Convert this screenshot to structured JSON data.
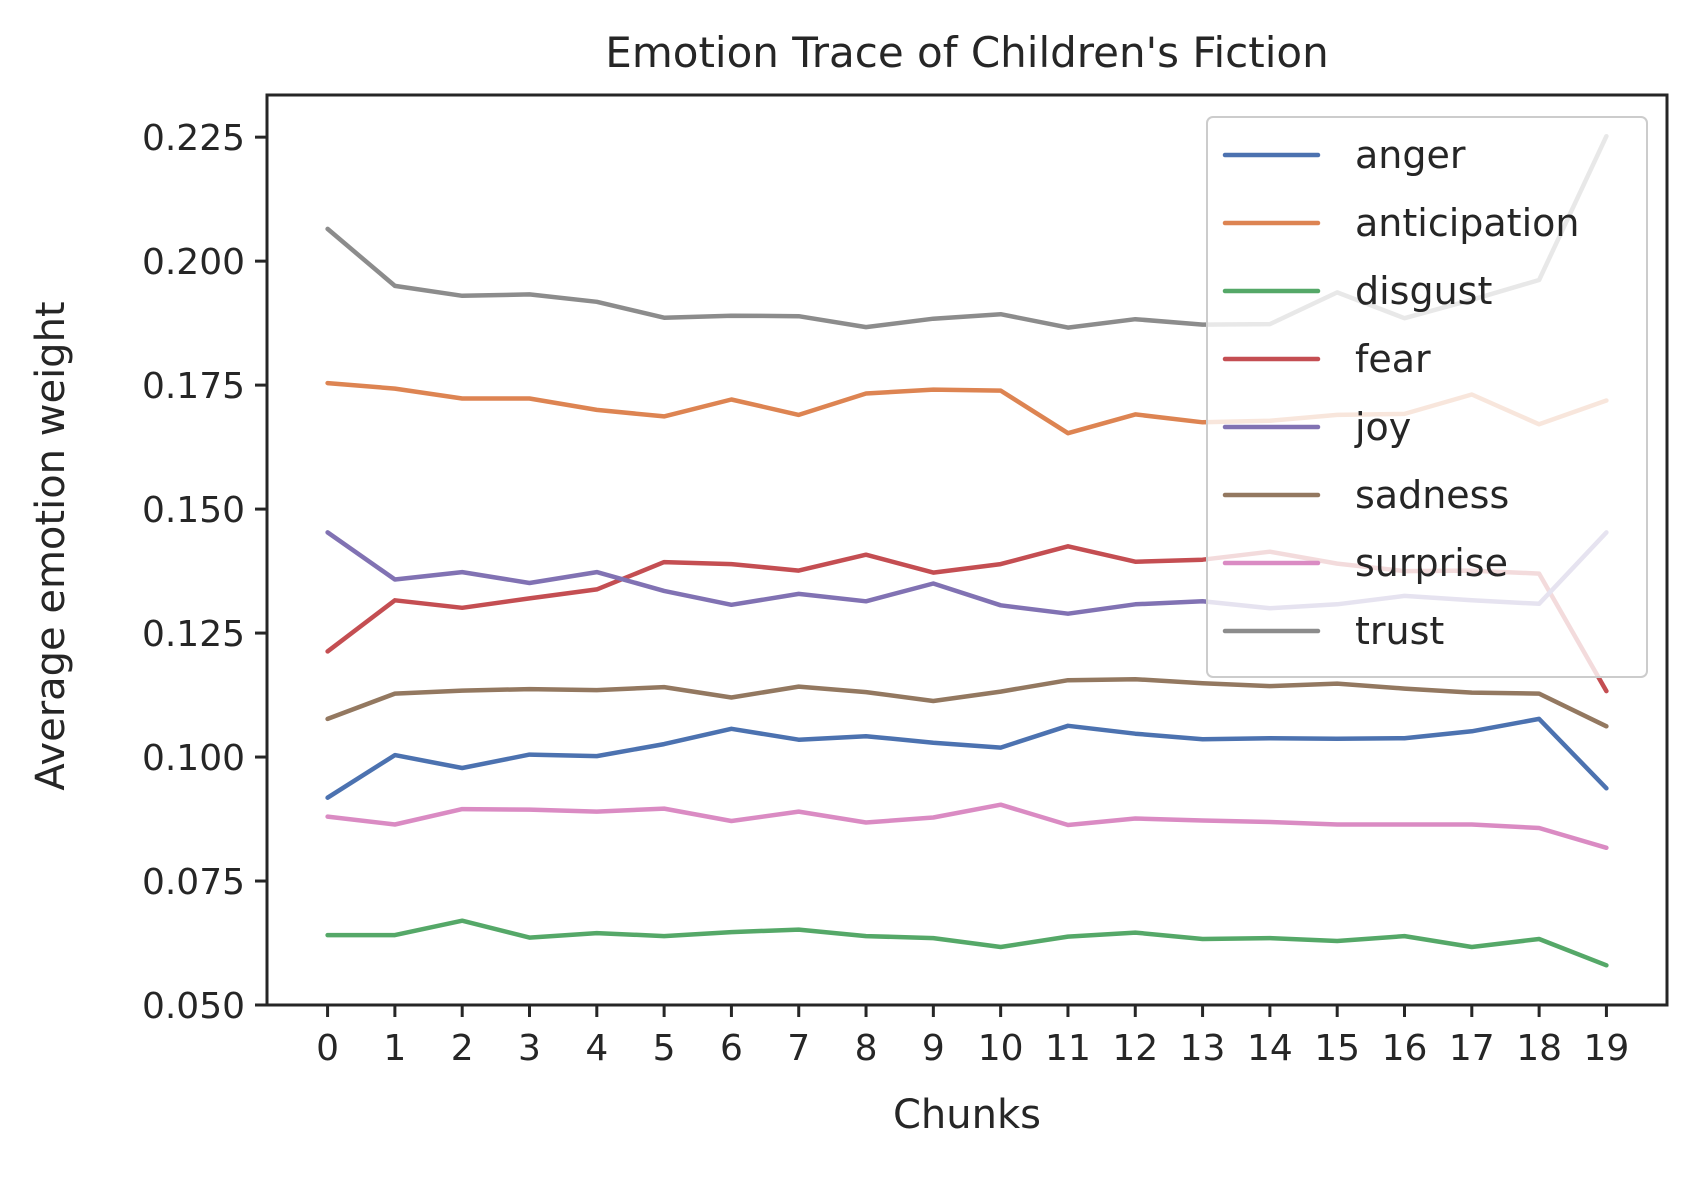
{
  "chart_data": {
    "type": "line",
    "title": "Emotion Trace of Children's Fiction",
    "xlabel": "Chunks",
    "ylabel": "Average emotion weight",
    "x": [
      0,
      1,
      2,
      3,
      4,
      5,
      6,
      7,
      8,
      9,
      10,
      11,
      12,
      13,
      14,
      15,
      16,
      17,
      18,
      19
    ],
    "xlim": [
      -0.9,
      19.9
    ],
    "ylim": [
      0.05,
      0.2335
    ],
    "yticks": [
      0.05,
      0.075,
      0.1,
      0.125,
      0.15,
      0.175,
      0.2,
      0.225
    ],
    "ytick_labels": [
      "0.050",
      "0.075",
      "0.100",
      "0.125",
      "0.150",
      "0.175",
      "0.200",
      "0.225"
    ],
    "grid": false,
    "legend_position": "top-right",
    "series": [
      {
        "name": "anger",
        "color": "#4c72b0",
        "values": [
          0.0918,
          0.1004,
          0.0978,
          0.1005,
          0.1002,
          0.1026,
          0.1057,
          0.1035,
          0.1042,
          0.1029,
          0.1019,
          0.1063,
          0.1047,
          0.1036,
          0.1038,
          0.1037,
          0.1038,
          0.1052,
          0.1077,
          0.0937
        ]
      },
      {
        "name": "anticipation",
        "color": "#dd8452",
        "values": [
          0.1754,
          0.1743,
          0.1723,
          0.1723,
          0.17,
          0.1687,
          0.1721,
          0.169,
          0.1733,
          0.1741,
          0.1739,
          0.1653,
          0.1691,
          0.1675,
          0.1678,
          0.169,
          0.1692,
          0.1731,
          0.1671,
          0.1719
        ]
      },
      {
        "name": "disgust",
        "color": "#55a868",
        "values": [
          0.0641,
          0.0641,
          0.067,
          0.0636,
          0.0645,
          0.0639,
          0.0647,
          0.0652,
          0.0639,
          0.0635,
          0.0617,
          0.0638,
          0.0646,
          0.0633,
          0.0635,
          0.0629,
          0.0639,
          0.0617,
          0.0633,
          0.058
        ]
      },
      {
        "name": "fear",
        "color": "#c44e52",
        "values": [
          0.1213,
          0.1316,
          0.1301,
          0.132,
          0.1338,
          0.1393,
          0.1389,
          0.1376,
          0.1408,
          0.1372,
          0.1389,
          0.1425,
          0.1394,
          0.1398,
          0.1414,
          0.139,
          0.1375,
          0.1376,
          0.137,
          0.1133
        ]
      },
      {
        "name": "joy",
        "color": "#8172b3",
        "values": [
          0.1453,
          0.1358,
          0.1373,
          0.1351,
          0.1373,
          0.1335,
          0.1307,
          0.1329,
          0.1314,
          0.135,
          0.1306,
          0.1289,
          0.1308,
          0.1314,
          0.13,
          0.1308,
          0.1325,
          0.1316,
          0.1309,
          0.1453
        ]
      },
      {
        "name": "sadness",
        "color": "#937860",
        "values": [
          0.1077,
          0.1128,
          0.1134,
          0.1137,
          0.1135,
          0.1141,
          0.112,
          0.1142,
          0.1131,
          0.1113,
          0.1132,
          0.1155,
          0.1157,
          0.1149,
          0.1143,
          0.1148,
          0.1138,
          0.113,
          0.1128,
          0.1062
        ]
      },
      {
        "name": "surprise",
        "color": "#da8bc3",
        "values": [
          0.088,
          0.0864,
          0.0895,
          0.0894,
          0.089,
          0.0896,
          0.0871,
          0.089,
          0.0868,
          0.0878,
          0.0904,
          0.0863,
          0.0876,
          0.0872,
          0.0869,
          0.0864,
          0.0864,
          0.0864,
          0.0857,
          0.0817
        ]
      },
      {
        "name": "trust",
        "color": "#8c8c8c",
        "values": [
          0.2065,
          0.195,
          0.193,
          0.1933,
          0.1918,
          0.1886,
          0.189,
          0.1889,
          0.1867,
          0.1884,
          0.1893,
          0.1866,
          0.1883,
          0.1872,
          0.1873,
          0.1937,
          0.1885,
          0.1922,
          0.1962,
          0.2252
        ]
      }
    ]
  }
}
